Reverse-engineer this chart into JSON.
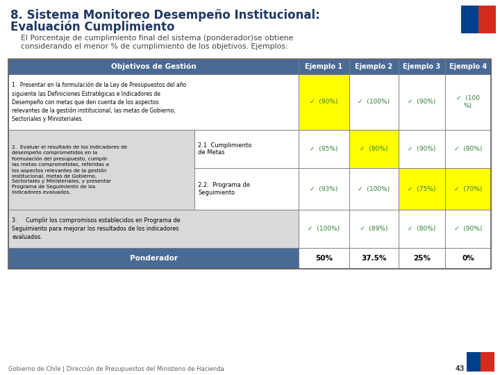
{
  "title_line1": "8. Sistema Monitoreo Desempeño Institucional:",
  "title_line2": "Evaluación Cumplimiento",
  "subtitle_line1": "El Porcentaje de cumplimiento final del sistema (ponderador)se obtiene",
  "subtitle_line2": "considerando el menor % de cumplimiento de los objetivos. Ejemplos:",
  "header_bg": "#4a6a96",
  "header_text_color": "#ffffff",
  "row_bg_white": "#ffffff",
  "row_bg_gray": "#d9d9d9",
  "yellow_bg": "#ffff00",
  "title_color": "#1f3864",
  "subtitle_color": "#404040",
  "footer_text": "Gobierno de Chile | Dirección de Presupuestos del Ministerio de Hacienda",
  "page_number": "43",
  "flag_blue": "#003f8a",
  "flag_red": "#d52b1e",
  "check_color": "#2e7d32",
  "ponderador_values": [
    "50%",
    "37.5%",
    "25%",
    "0%"
  ],
  "background_color": "#ffffff",
  "border_color": "#808080",
  "obj1_text": "1.  Presentar en la formulación de la Ley de Presupuestos del año\nsiguiente las Definiciones Estratégicas e Indicadores de\nDesempeño con metas que den cuenta de los aspectos\nrelevantes de la gestión institucional, las metas de Gobierno,\nSectoriales y Ministeriales.",
  "obj2_text": "2.  Evaluar el resultado de los indicadores de\ndesempeño comprometidos en la\nformulación del presupuesto, cumplir\nlas metas comprometidas, referidas a\nlos aspectos relevantes de la gestión\ninstitucional, metas de Gobierno,\nSectoriales y Ministeriales, y presentar\nPrograma de Seguimiento de los\nindicadores evaluados.",
  "obj3_text": "3.     Cumplir los compromisos establecidos en Programa de\nSeguimiento para mejorar los resultados de los indicadores\nevaluados.",
  "sub21_text": "2.1  Cumplimiento\nde Metas",
  "sub22_text": "2.2.  Programa de\nSeguimiento",
  "row1_yellow_col": 0,
  "row2a_yellow_col": 1,
  "row2b_yellow_col": 2,
  "row1_values": [
    "✓  (90%)",
    "✓  (100%)",
    "✓  (90%)",
    "✓  (100\n%)"
  ],
  "row2a_values": [
    "✓  (95%)",
    "✓  (80%)",
    "✓  (90%)",
    "✓  (80%)"
  ],
  "row2b_values": [
    "✓  (93%)",
    "✓  (100%)",
    "✓  (75%)",
    "✓  (70%)"
  ],
  "row3_values": [
    "✓  (100%)",
    "✓  (89%)",
    "✓  (80%)",
    "✓  (90%)"
  ]
}
